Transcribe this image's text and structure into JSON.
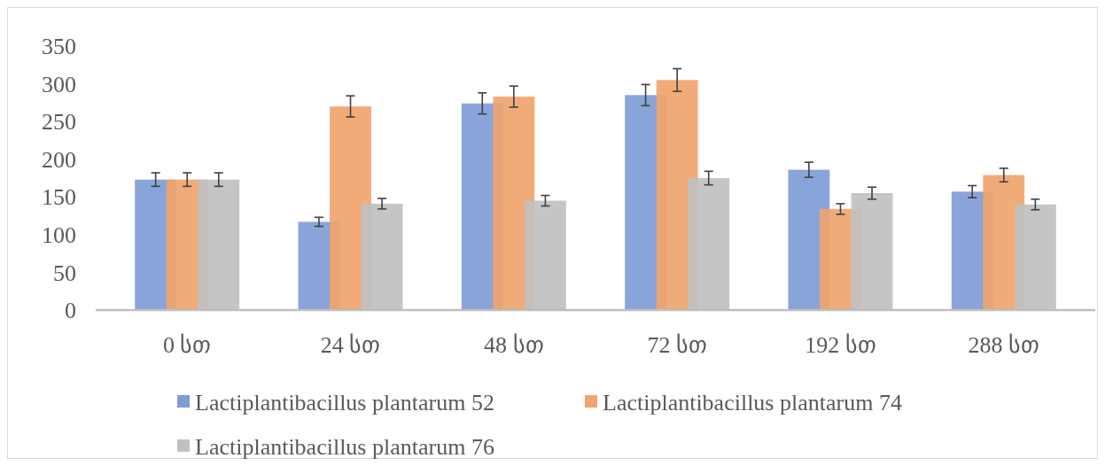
{
  "chart_data": {
    "type": "bar",
    "categories": [
      "0 სთ",
      "24 სთ",
      "48 სთ",
      "72 სთ",
      "192 სთ",
      "288 სთ"
    ],
    "series": [
      {
        "name": "Lactiplantibacillus plantarum 52",
        "color": "#7f9cd5",
        "values": [
          173,
          117,
          274,
          285,
          186,
          157
        ],
        "errors": [
          9,
          6,
          14,
          14,
          10,
          8
        ]
      },
      {
        "name": "Lactiplantibacillus plantarum 74",
        "color": "#f0a46e",
        "values": [
          173,
          270,
          283,
          305,
          134,
          179
        ],
        "errors": [
          9,
          14,
          14,
          15,
          7,
          9
        ]
      },
      {
        "name": "Lactiplantibacillus plantarum 76",
        "color": "#c0c0c0",
        "values": [
          173,
          141,
          145,
          175,
          155,
          140
        ],
        "errors": [
          9,
          7,
          7,
          9,
          8,
          7
        ]
      }
    ],
    "ylim": [
      0,
      350
    ],
    "yticks": [
      0,
      50,
      100,
      150,
      200,
      250,
      300,
      350
    ],
    "grid": false,
    "legend": "bottom"
  }
}
